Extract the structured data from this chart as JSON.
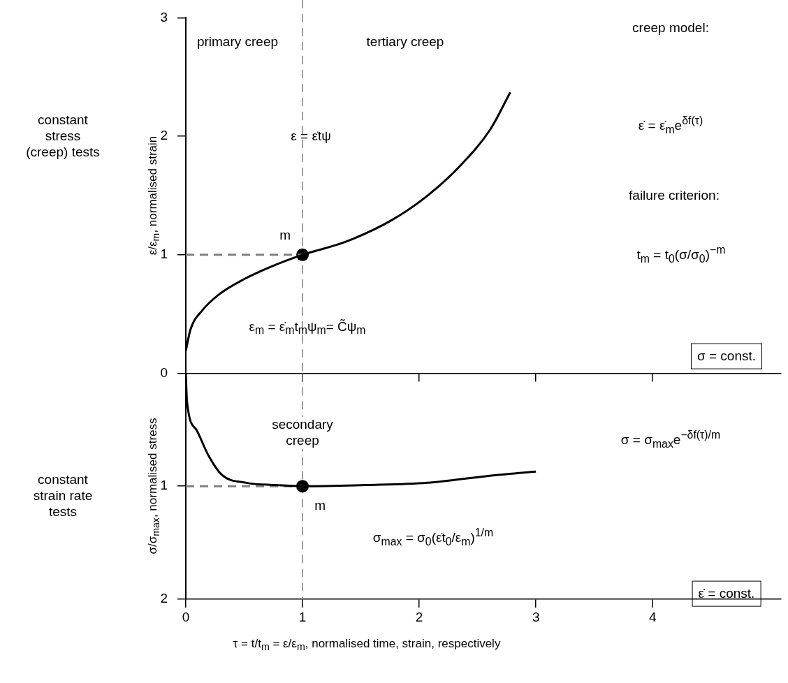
{
  "chart_data": [
    {
      "type": "line",
      "ylabel": "ε/ε$_{m}$, normalised strain",
      "xlim": [
        0,
        5.1
      ],
      "ylim": [
        0,
        3
      ],
      "xticks": [
        0,
        1,
        2,
        3,
        4
      ],
      "yticks": [
        0,
        1,
        2,
        3
      ],
      "tick_labels": "y",
      "ref_lines": [
        {
          "axis": "x",
          "value": 1,
          "color": "#808080",
          "line_style": "dashed"
        }
      ],
      "series": [
        {
          "type": "line",
          "color": "#000000",
          "marker": "none",
          "x": [
            0,
            0.04,
            0.14,
            0.29,
            0.49,
            0.73,
            1,
            1.37,
            1.76,
            2.06,
            2.35,
            2.61,
            2.78
          ],
          "values": [
            0.19,
            0.37,
            0.53,
            0.67,
            0.79,
            0.9,
            1,
            1.11,
            1.29,
            1.49,
            1.75,
            2.06,
            2.37
          ]
        },
        {
          "type": "line",
          "color": "#808080",
          "marker": "none",
          "line_style": "dashed",
          "x": [
            0,
            1
          ],
          "values": [
            1,
            1
          ]
        },
        {
          "type": "scatter",
          "color": "#000000",
          "marker": "circle",
          "x": [
            1
          ],
          "values": [
            1
          ]
        }
      ],
      "annotations": [
        "primary creep",
        "tertiary creep",
        "ε = ε̇tψ",
        "ε$_{m}$ = ε̇$_{m}$t$_{m}$ψ$_{m}$= C̃ψ$_{m}$",
        "creep model:",
        "ε̇ = ε̇$_{m}$e$^{δf(τ)}$",
        "failure criterion:",
        "t$_{m}$ = t$_{0}$(σ/σ$_{0}$)$^{−m}$",
        "σ = const.",
        "constant stress (creep) tests",
        {
          "text": "m",
          "x": 1,
          "y": 1
        }
      ]
    },
    {
      "type": "line",
      "ylabel": "σ/σ$_{max}$, normalised stress",
      "xlabel": "τ = t/t$_{m}$ = ε/ε$_{m}$, normalised time, strain, respectively",
      "xlim": [
        0,
        5.1
      ],
      "ylim": [
        2,
        0
      ],
      "xticks": [
        0,
        1,
        2,
        3,
        4
      ],
      "yticks": [
        1,
        2
      ],
      "ref_lines": [
        {
          "axis": "x",
          "value": 1,
          "color": "#808080",
          "line_style": "dashed"
        }
      ],
      "series": [
        {
          "type": "line",
          "color": "#000000",
          "marker": "none",
          "x": [
            0,
            0.01,
            0.09,
            0.19,
            0.31,
            0.52,
            0.77,
            1,
            1.55,
            2.07,
            2.58,
            3
          ],
          "values": [
            0,
            0.25,
            0.5,
            0.72,
            0.9,
            0.97,
            0.99,
            1,
            0.99,
            0.97,
            0.91,
            0.87
          ]
        },
        {
          "type": "line",
          "color": "#808080",
          "marker": "none",
          "line_style": "dashed",
          "x": [
            0,
            1
          ],
          "values": [
            1,
            1
          ]
        },
        {
          "type": "scatter",
          "color": "#000000",
          "marker": "circle",
          "x": [
            1
          ],
          "values": [
            1
          ]
        }
      ],
      "annotations": [
        "secondary creep",
        "σ = σ$_{max}$e$^{−δf(τ)/m}$",
        "σ$_{max}$ = σ$_{0}$(ε̇t$_{0}$/ε$_{m}$)$^{1/m}$",
        "ε̇ = const.",
        "constant strain rate tests",
        {
          "text": "m",
          "x": 1,
          "y": 1
        }
      ]
    }
  ]
}
